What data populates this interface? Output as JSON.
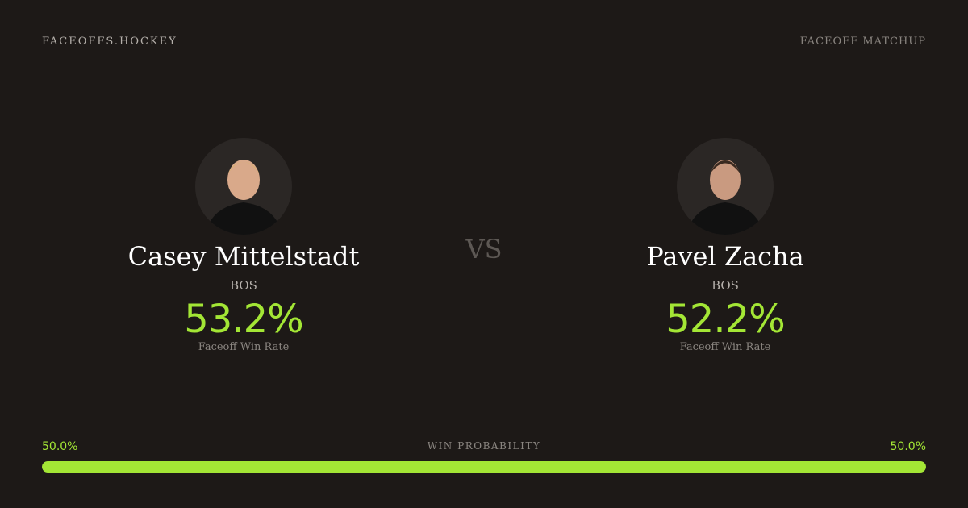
{
  "header": {
    "brand": "FACEOFFS.HOCKEY",
    "page_label": "FACEOFF MATCHUP"
  },
  "players": [
    {
      "name": "Casey Mittelstadt",
      "team": "BOS",
      "win_rate": "53.2%",
      "win_rate_label": "Faceoff Win Rate"
    },
    {
      "name": "Pavel Zacha",
      "team": "BOS",
      "win_rate": "52.2%",
      "win_rate_label": "Faceoff Win Rate"
    }
  ],
  "vs": "VS",
  "win_probability": {
    "label": "WIN PROBABILITY",
    "left": "50.0%",
    "right": "50.0%",
    "left_fraction": 1.0
  },
  "colors": {
    "accent": "#a3e635",
    "background": "#1d1917"
  }
}
